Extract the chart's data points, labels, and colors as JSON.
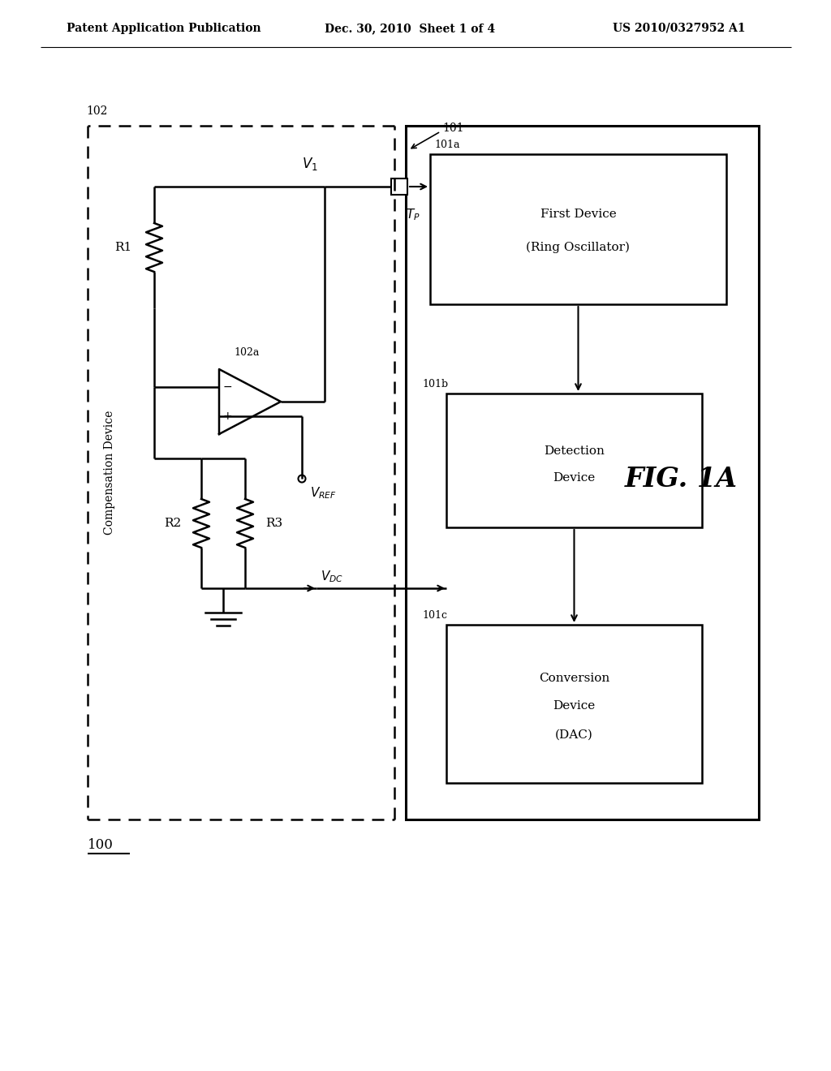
{
  "background_color": "#ffffff",
  "header_left": "Patent Application Publication",
  "header_mid": "Dec. 30, 2010  Sheet 1 of 4",
  "header_right": "US 2010/0327952 A1",
  "fig_label": "FIG. 1A",
  "label_100": "100",
  "label_101": "101",
  "label_101a": "101a",
  "label_101b": "101b",
  "label_101c": "101c",
  "label_102": "102",
  "label_102a": "102a",
  "box_101_text_line1": "First Device",
  "box_101_text_line2": "(Ring Oscillator)",
  "box_101b_text1": "Detection",
  "box_101b_text2": "Device",
  "box_101c_text1": "Conversion",
  "box_101c_text2": "Device",
  "box_101c_text3": "(DAC)",
  "comp_device_label": "Compensation Device",
  "r1_label": "R1",
  "r2_label": "R2",
  "r3_label": "R3"
}
